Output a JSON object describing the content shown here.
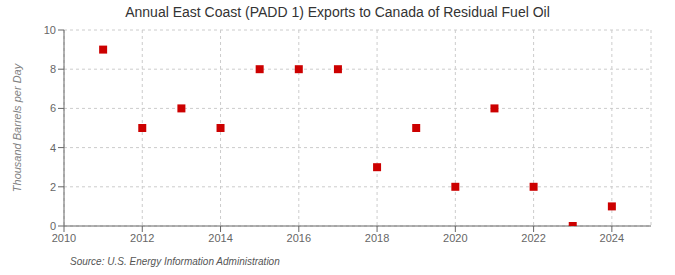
{
  "chart_data": {
    "type": "scatter",
    "title": "Annual East Coast (PADD 1) Exports to Canada of Residual Fuel Oil",
    "ylabel": "Thousand Barrels per Day",
    "source": "Source: U.S. Energy Information Administration",
    "x": [
      2011,
      2012,
      2013,
      2014,
      2015,
      2016,
      2017,
      2018,
      2019,
      2020,
      2021,
      2022,
      2023,
      2024
    ],
    "values": [
      9.0,
      5.0,
      6.0,
      5.0,
      8.0,
      8.0,
      8.0,
      3.0,
      5.0,
      2.0,
      6.0,
      2.0,
      0.0,
      1.0
    ],
    "xlim": [
      2010,
      2025
    ],
    "ylim": [
      0,
      10
    ],
    "xticks": [
      2010,
      2012,
      2014,
      2016,
      2018,
      2020,
      2022,
      2024
    ],
    "yticks": [
      0,
      2,
      4,
      6,
      8,
      10
    ],
    "color": "#cc0000",
    "marker": "square",
    "grid": true
  }
}
